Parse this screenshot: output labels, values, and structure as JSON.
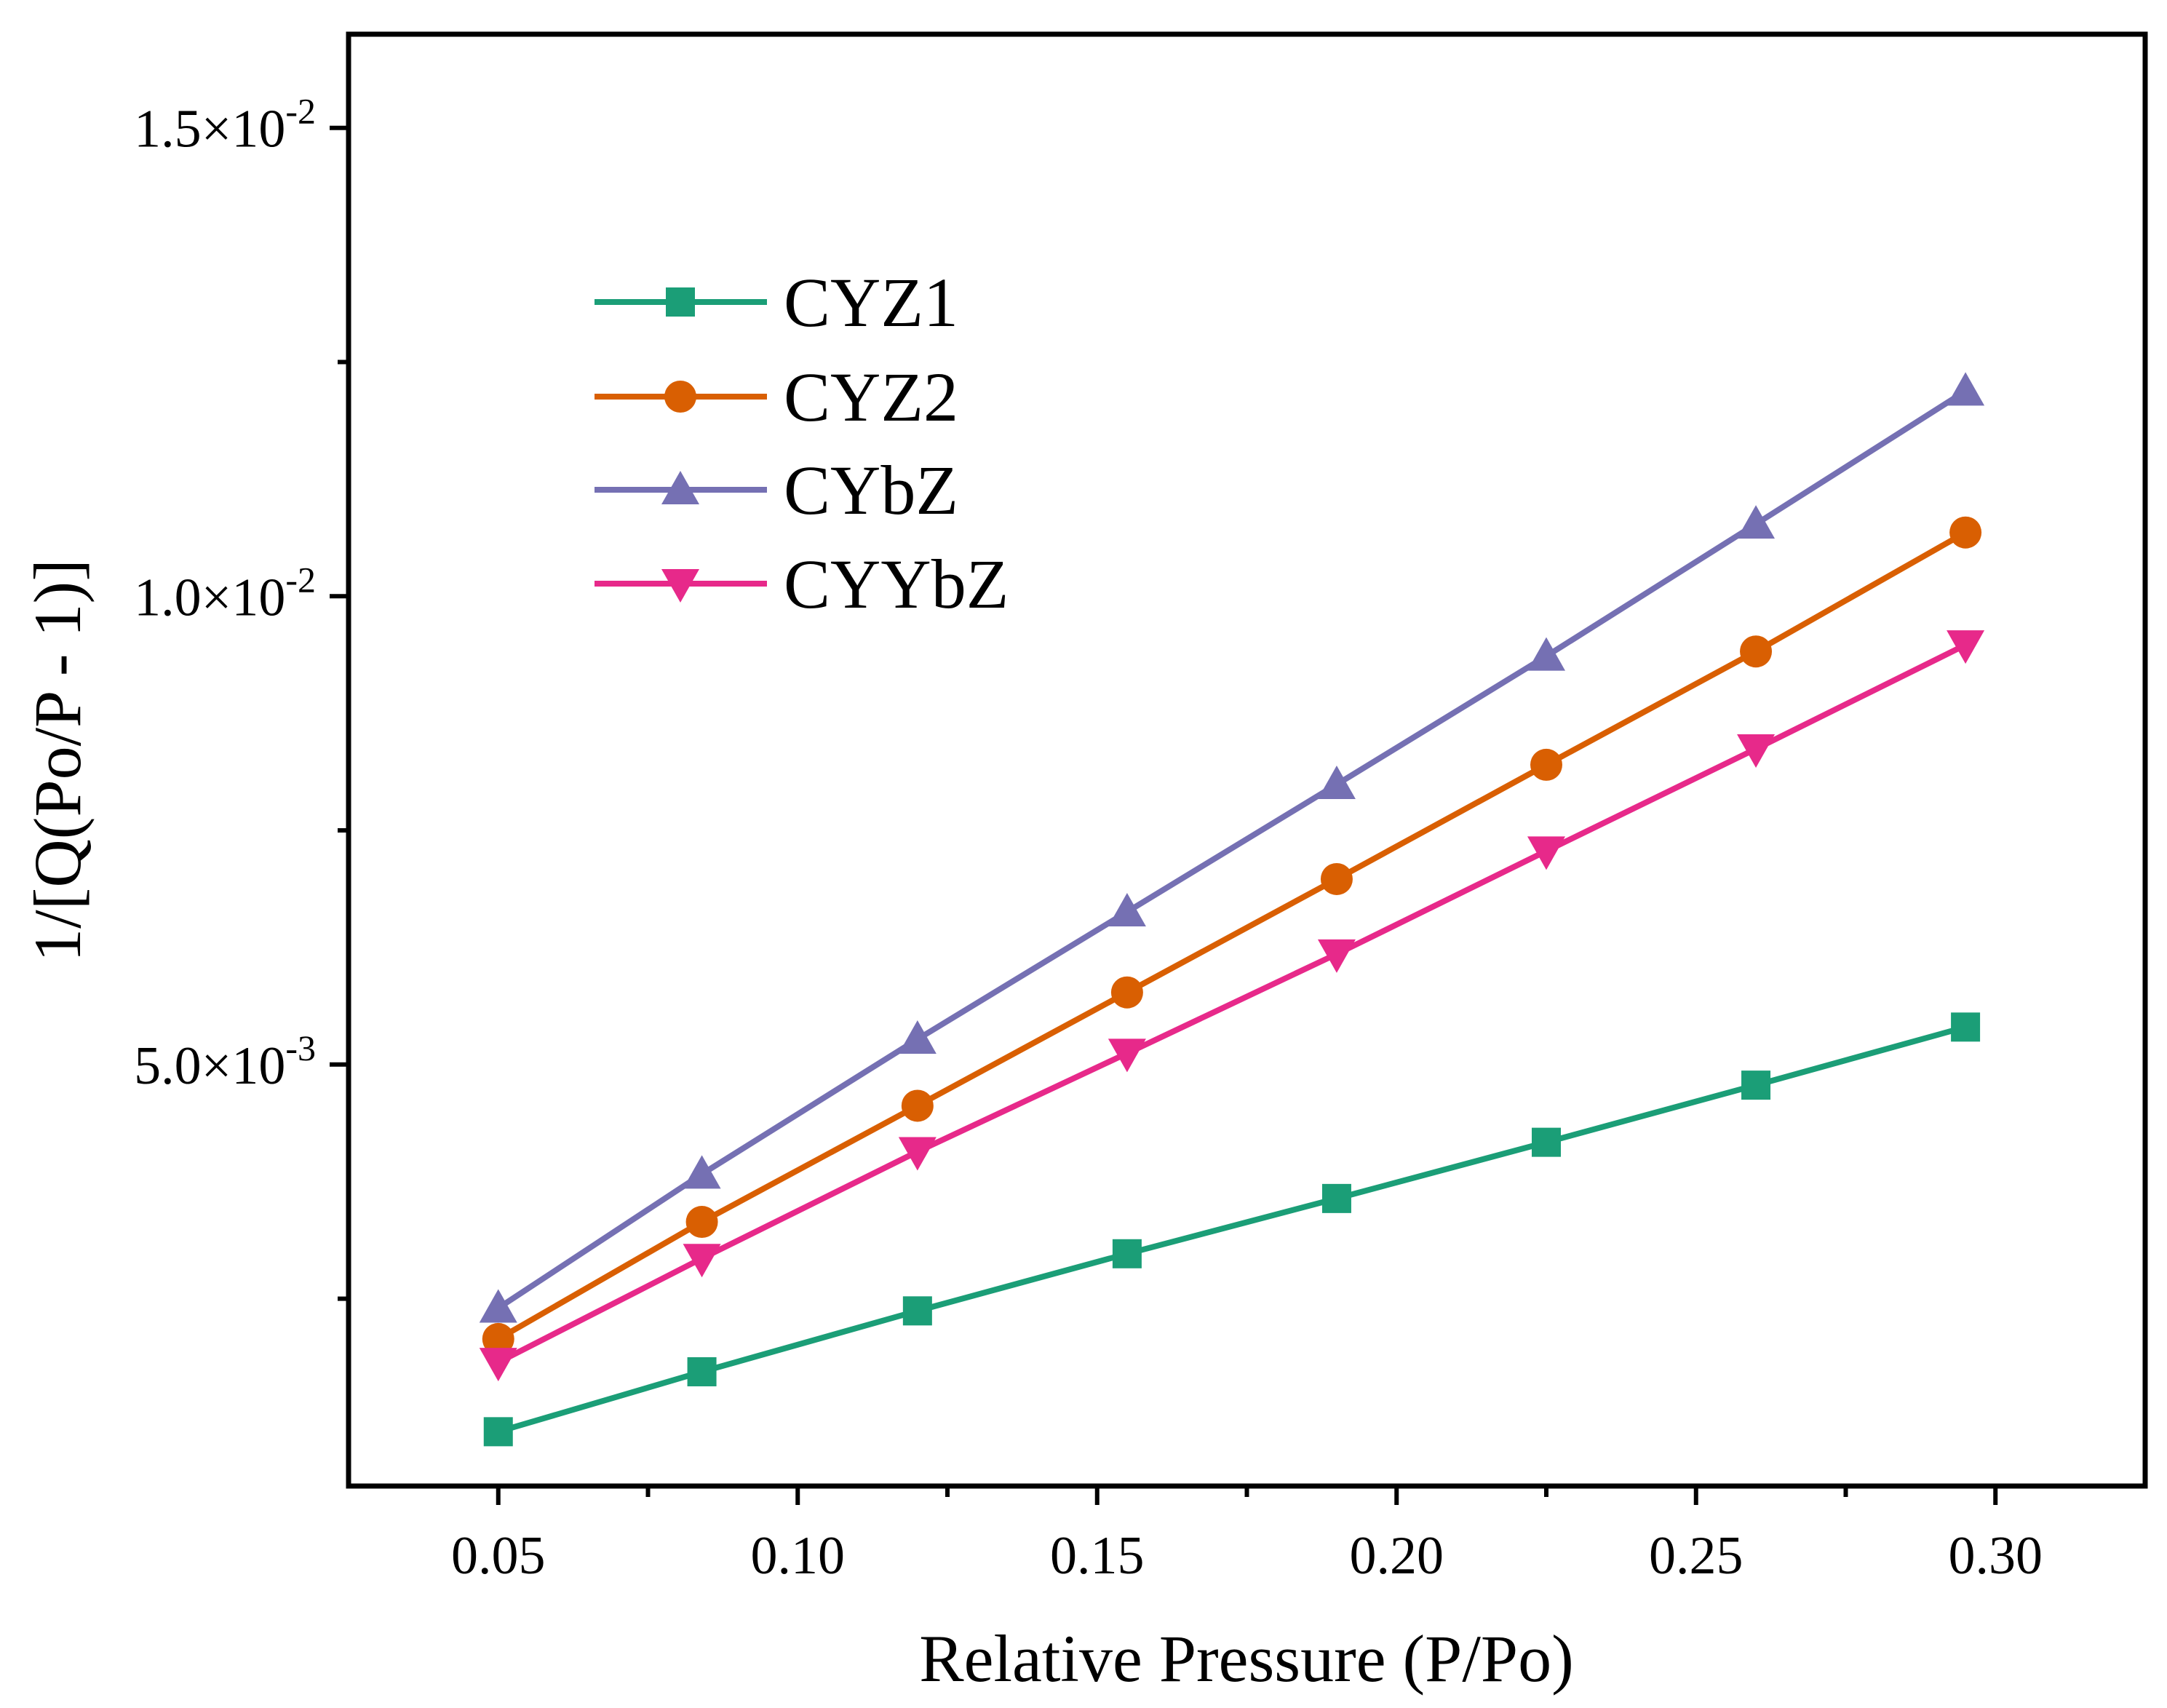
{
  "chart_data": {
    "type": "line",
    "xlabel": "Relative Pressure (P/Po)",
    "ylabel": "1/[Q(Po/P - 1)]",
    "xlim": [
      0.025,
      0.325
    ],
    "ylim": [
      0.0005,
      0.016
    ],
    "x_ticks": [
      0.05,
      0.1,
      0.15,
      0.2,
      0.25,
      0.3
    ],
    "x_tick_labels": [
      "0.05",
      "0.10",
      "0.15",
      "0.20",
      "0.25",
      "0.30"
    ],
    "x_minor_ticks": [
      0.075,
      0.125,
      0.175,
      0.225,
      0.275
    ],
    "y_ticks": [
      0.005,
      0.01,
      0.015
    ],
    "y_tick_labels": [
      {
        "mantissa": "5.0×10",
        "exp": "-3"
      },
      {
        "mantissa": "1.0×10",
        "exp": "-2"
      },
      {
        "mantissa": "1.5×10",
        "exp": "-2"
      }
    ],
    "y_minor_ticks": [
      0.0025,
      0.0075,
      0.0125
    ],
    "grid": false,
    "legend_position": "top-left",
    "x": [
      0.05,
      0.084,
      0.12,
      0.155,
      0.19,
      0.225,
      0.26,
      0.295
    ],
    "series": [
      {
        "name": "CYZ1",
        "color": "#1b9e77",
        "marker": "square",
        "values": [
          0.00108,
          0.00172,
          0.00237,
          0.00298,
          0.00357,
          0.00417,
          0.00478,
          0.0054
        ]
      },
      {
        "name": "CYZ2",
        "color": "#d95f02",
        "marker": "circle",
        "values": [
          0.00207,
          0.00332,
          0.00456,
          0.00577,
          0.00698,
          0.0082,
          0.00941,
          0.01068
        ]
      },
      {
        "name": "CYbZ",
        "color": "#7570b3",
        "marker": "triangle-up",
        "values": [
          0.0024,
          0.00383,
          0.00527,
          0.00663,
          0.00799,
          0.00936,
          0.01077,
          0.01219
        ]
      },
      {
        "name": "CYYbZ",
        "color": "#e7298a",
        "marker": "triangle-down",
        "values": [
          0.00182,
          0.00293,
          0.00407,
          0.00512,
          0.00618,
          0.00728,
          0.00837,
          0.00948
        ]
      }
    ]
  }
}
